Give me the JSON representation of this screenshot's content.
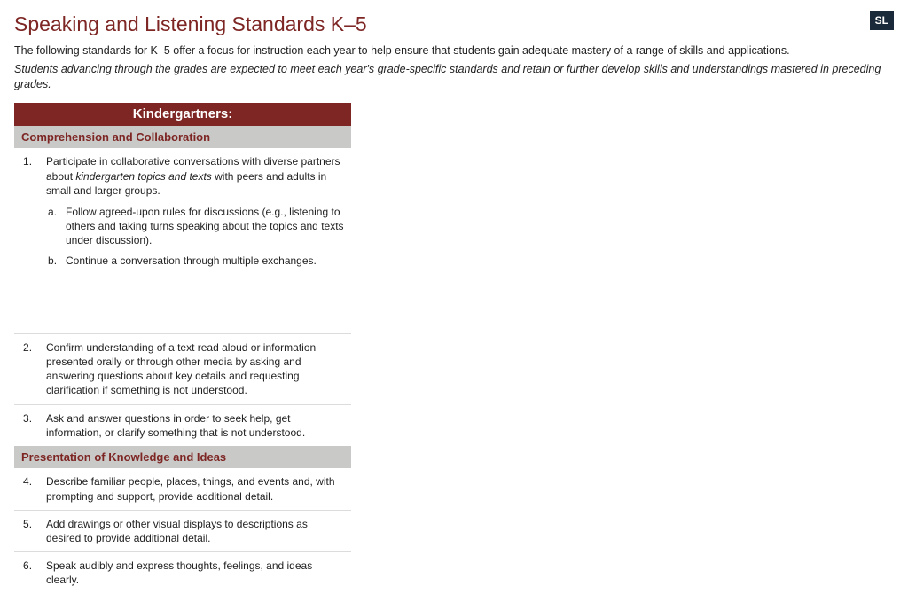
{
  "colors": {
    "title": "#7d2624",
    "badge_bg": "#1a2a3a",
    "grade_header_bg": "#7d2624",
    "section_header_bg": "#c9c9c7",
    "section_header_text": "#7d2624",
    "body_text": "#222222"
  },
  "header": {
    "title": "Speaking and Listening Standards K–5",
    "badge": "SL"
  },
  "intro": {
    "plain": "The following standards for K–5 offer a focus for instruction each year to help ensure that students gain adequate mastery of a range of skills and applications.",
    "italic": "Students advancing through the grades are expected to meet each year's grade-specific standards and retain or further develop skills and understandings mastered in preceding grades."
  },
  "column": {
    "grade_label": "Kindergartners:",
    "sections": [
      {
        "title": "Comprehension and Collaboration",
        "items": [
          {
            "html": "Participate in collaborative conversations with diverse partners about <em>kindergarten topics and texts</em> with peers and adults in small and larger groups.",
            "sub": [
              "Follow agreed-upon rules for discussions (e.g., listening to others and taking turns speaking about the topics and texts under discussion).",
              "Continue a conversation through multiple exchanges."
            ],
            "tall": true
          },
          {
            "html": "Confirm understanding of a text read aloud or information presented orally or through other media by asking and answering questions about key details and requesting clarification if something is not understood."
          },
          {
            "html": "Ask and answer questions in order to seek help, get information, or clarify something that is not understood."
          }
        ]
      },
      {
        "title": "Presentation of Knowledge and Ideas",
        "start": 4,
        "items": [
          {
            "html": "Describe familiar people, places, things, and events and, with prompting and support, provide additional detail."
          },
          {
            "html": "Add drawings or other visual displays to descriptions as desired to provide additional detail."
          },
          {
            "html": "Speak audibly and express thoughts, feelings, and ideas clearly."
          }
        ]
      }
    ]
  }
}
